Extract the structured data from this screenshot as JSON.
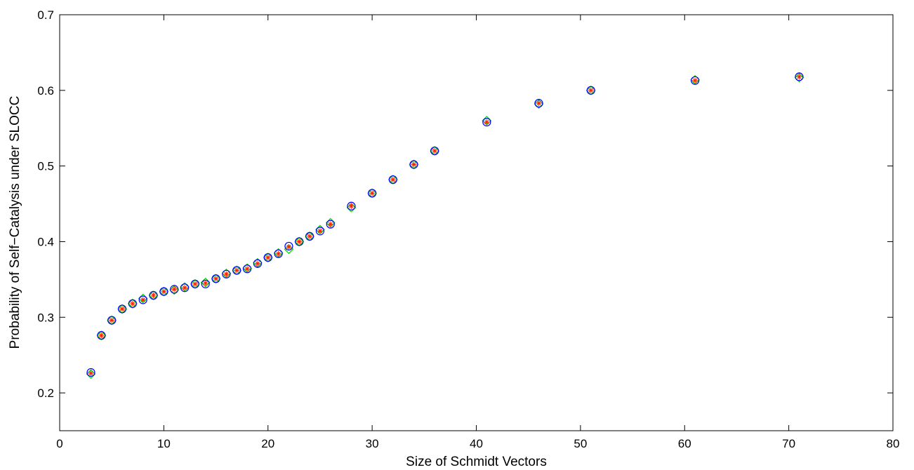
{
  "chart_data": {
    "type": "scatter",
    "title": "",
    "xlabel": "Size of Schmidt Vectors",
    "ylabel": "Probability of Self−Catalysis under SLOCC",
    "xlim": [
      0,
      80
    ],
    "ylim": [
      0.15,
      0.7
    ],
    "xticks": [
      0,
      10,
      20,
      30,
      40,
      50,
      60,
      70,
      80
    ],
    "yticks": [
      0.2,
      0.3,
      0.4,
      0.5,
      0.6,
      0.7
    ],
    "xtick_labels": [
      "0",
      "10",
      "20",
      "30",
      "40",
      "50",
      "60",
      "70",
      "80"
    ],
    "ytick_labels": [
      "0.2",
      "0.3",
      "0.4",
      "0.5",
      "0.6",
      "0.7"
    ],
    "grid": false,
    "legend": "none",
    "series": [
      {
        "marker": "circle",
        "color": "#0000ff",
        "x": [
          3,
          4,
          5,
          6,
          7,
          8,
          9,
          10,
          11,
          12,
          13,
          14,
          15,
          16,
          17,
          18,
          19,
          20,
          21,
          22,
          23,
          24,
          25,
          26,
          28,
          30,
          32,
          34,
          36,
          41,
          46,
          51,
          61,
          71
        ],
        "y": [
          0.227,
          0.276,
          0.296,
          0.311,
          0.318,
          0.323,
          0.329,
          0.334,
          0.337,
          0.339,
          0.344,
          0.344,
          0.351,
          0.357,
          0.362,
          0.364,
          0.371,
          0.379,
          0.384,
          0.394,
          0.4,
          0.407,
          0.414,
          0.423,
          0.447,
          0.464,
          0.482,
          0.502,
          0.52,
          0.558,
          0.583,
          0.6,
          0.613,
          0.618
        ]
      },
      {
        "marker": "diamond",
        "color": "#00dd00",
        "x": [
          3,
          4,
          5,
          6,
          7,
          8,
          9,
          10,
          11,
          12,
          13,
          14,
          15,
          16,
          17,
          18,
          19,
          20,
          21,
          22,
          23,
          24,
          25,
          26,
          28,
          30,
          32,
          34,
          36,
          41,
          46,
          51,
          61,
          71
        ],
        "y": [
          0.225,
          0.276,
          0.296,
          0.311,
          0.318,
          0.325,
          0.329,
          0.334,
          0.336,
          0.34,
          0.344,
          0.346,
          0.351,
          0.358,
          0.362,
          0.365,
          0.372,
          0.379,
          0.385,
          0.39,
          0.4,
          0.407,
          0.416,
          0.425,
          0.445,
          0.464,
          0.482,
          0.502,
          0.52,
          0.56,
          0.582,
          0.6,
          0.614,
          0.617
        ]
      },
      {
        "marker": "asterisk",
        "color": "#ff2200",
        "x": [
          3,
          4,
          5,
          6,
          7,
          8,
          9,
          10,
          11,
          12,
          13,
          14,
          15,
          16,
          17,
          18,
          19,
          20,
          21,
          22,
          23,
          24,
          25,
          26,
          28,
          30,
          32,
          34,
          36,
          41,
          46,
          51,
          61,
          71
        ],
        "y": [
          0.226,
          0.276,
          0.296,
          0.311,
          0.318,
          0.323,
          0.329,
          0.334,
          0.337,
          0.339,
          0.344,
          0.345,
          0.351,
          0.357,
          0.362,
          0.364,
          0.371,
          0.379,
          0.384,
          0.393,
          0.4,
          0.407,
          0.414,
          0.423,
          0.447,
          0.464,
          0.482,
          0.502,
          0.52,
          0.558,
          0.583,
          0.6,
          0.613,
          0.618
        ]
      }
    ]
  }
}
